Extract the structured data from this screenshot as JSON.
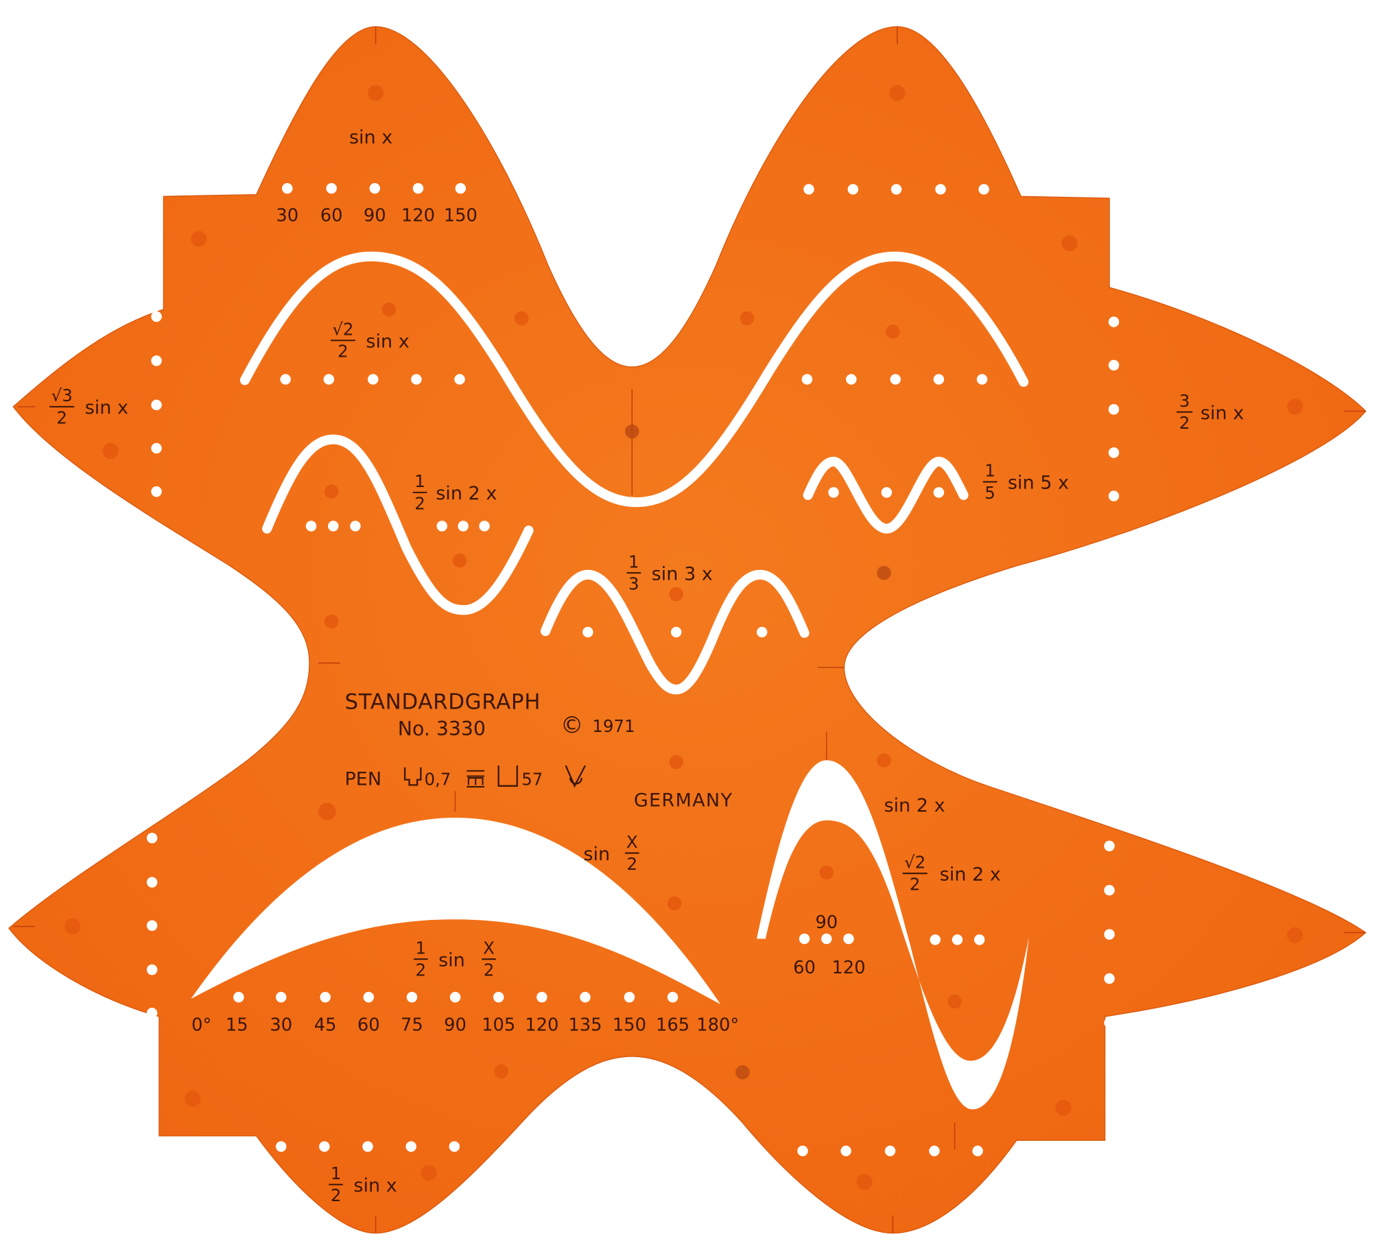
{
  "object": {
    "brand": "STANDARDGRAPH",
    "model": "No. 3330",
    "copyright_symbol": "©",
    "year": "1971",
    "pen_label": "PEN",
    "pen_width": "0,7",
    "pen_number": "57",
    "origin": "GERMANY",
    "colors": {
      "plastic": "#f26c14",
      "plastic_dark": "#e05a0c",
      "text": "#3b1606",
      "background": "#ffffff"
    }
  },
  "curves": {
    "sin_x": "sin x",
    "sqrt2_sin_x": {
      "num": "√2",
      "den": "2",
      "rest": "sin x"
    },
    "sqrt3_sin_x": {
      "num": "√3",
      "den": "2",
      "rest": "sin x"
    },
    "three_half_sin_x": {
      "num": "3",
      "den": "2",
      "rest": "sin x"
    },
    "half_sin_2x": {
      "num": "1",
      "den": "2",
      "rest": "sin 2 x"
    },
    "fifth_sin_5x": {
      "num": "1",
      "den": "5",
      "rest": "sin 5 x"
    },
    "third_sin_3x": {
      "num": "1",
      "den": "3",
      "rest": "sin 3 x"
    },
    "sin_2x": "sin 2 x",
    "sin_x_half": {
      "pre": "sin",
      "num": "X",
      "den": "2"
    },
    "sqrt2_sin_2x": {
      "num": "√2",
      "den": "2",
      "rest": "sin 2 x"
    },
    "half_sin_x_half": {
      "num": "1",
      "den": "2",
      "pre": "sin",
      "num2": "X",
      "den2": "2"
    },
    "half_sin_x": {
      "num": "1",
      "den": "2",
      "rest": "sin x"
    }
  },
  "scales": {
    "top_degrees": [
      "30",
      "60",
      "90",
      "120",
      "150"
    ],
    "sin2x_degrees": {
      "top": "90",
      "left": "60",
      "right": "120"
    },
    "bottom_degrees": [
      "0°",
      "15",
      "30",
      "45",
      "60",
      "75",
      "90",
      "105",
      "120",
      "135",
      "150",
      "165",
      "180°"
    ]
  }
}
